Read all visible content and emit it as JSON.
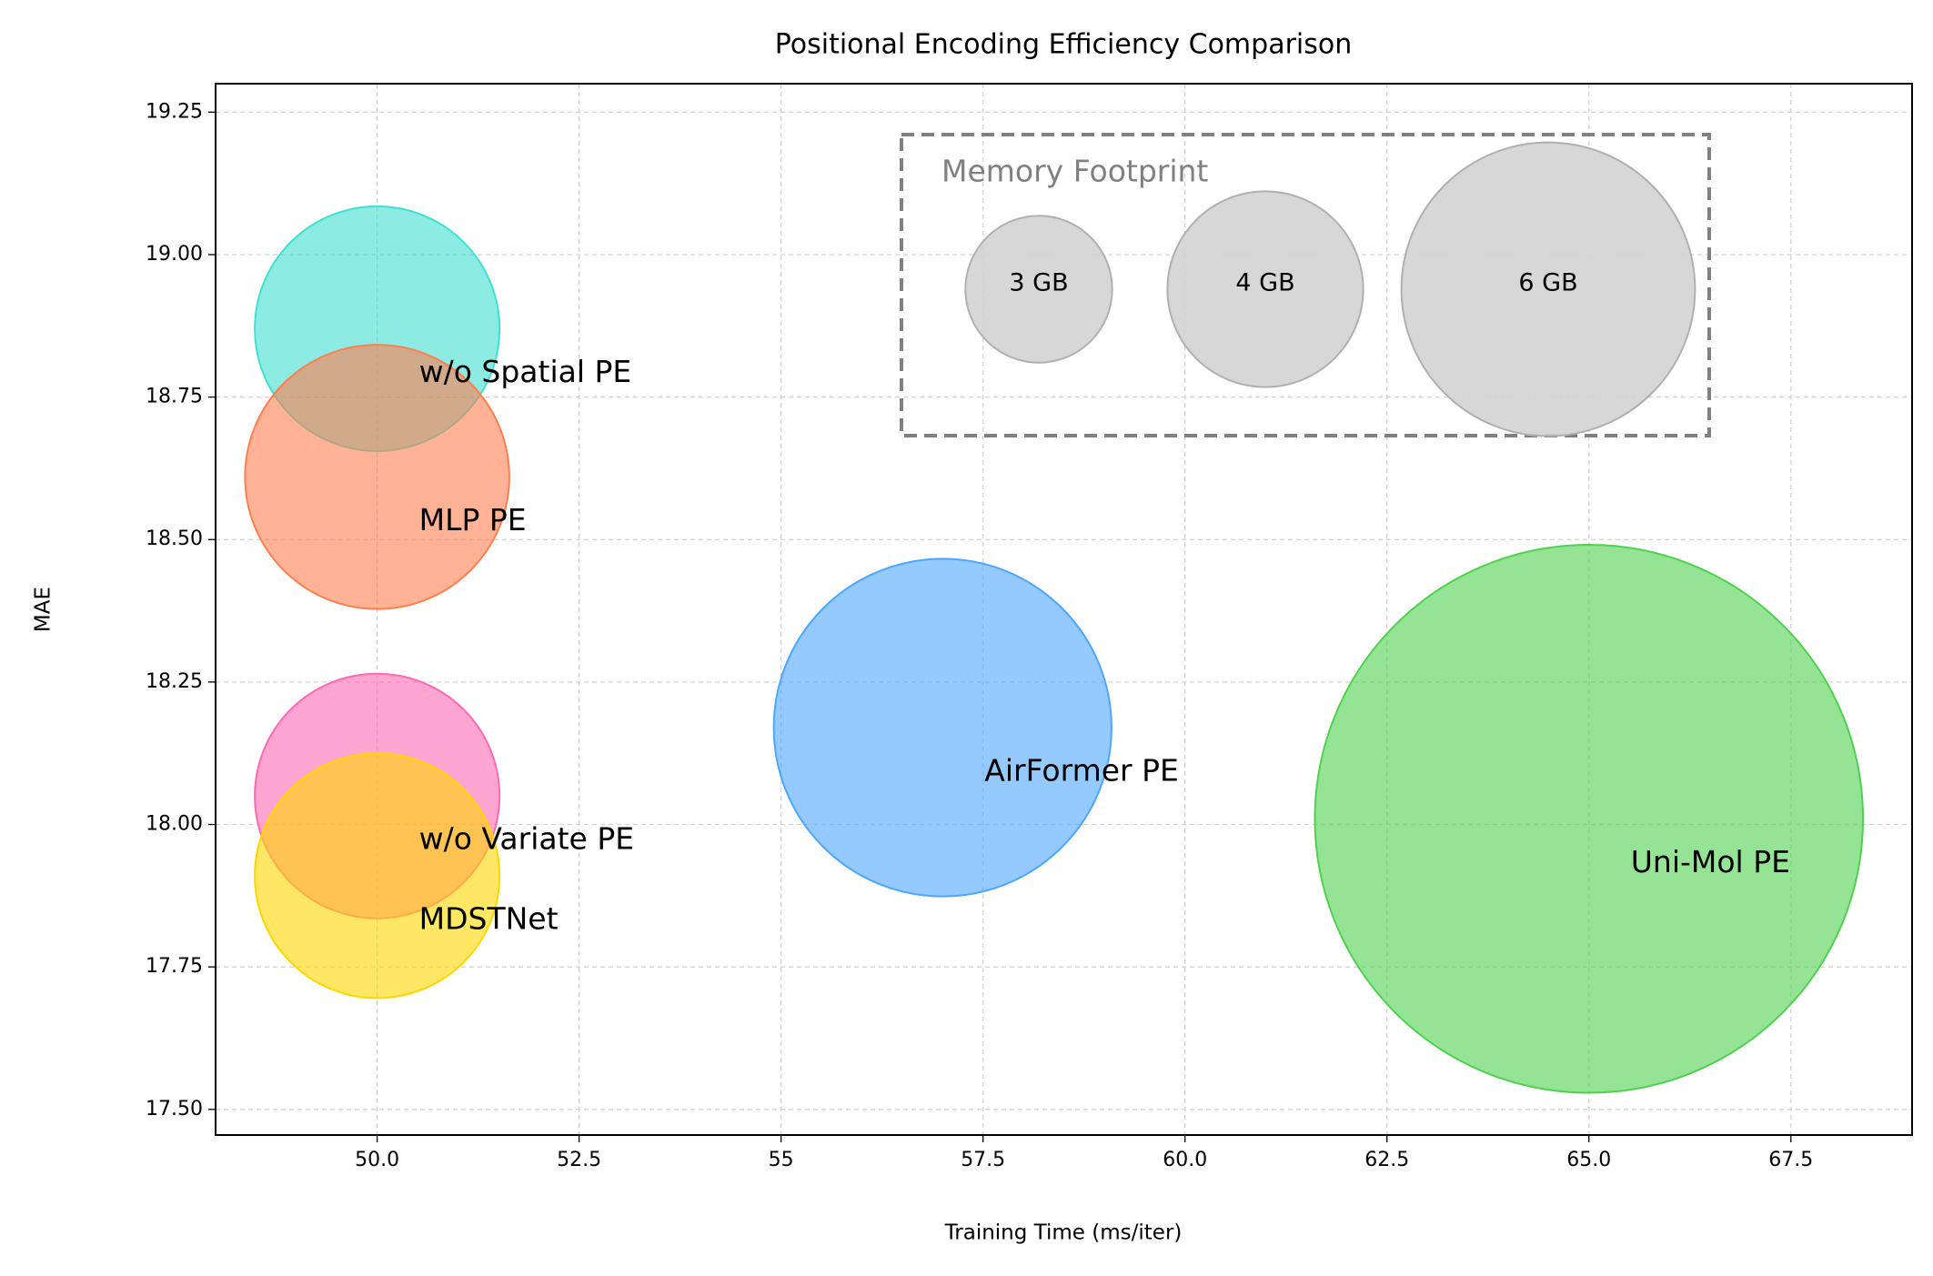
{
  "chart_data": {
    "type": "bubble",
    "title": "Positional Encoding Efficiency Comparison",
    "xlabel": "Training Time (ms/iter)",
    "ylabel": "MAE",
    "xlim": [
      48.0,
      69.0
    ],
    "ylim": [
      17.455,
      19.3
    ],
    "xticks": [
      {
        "value": 50,
        "label": "50.0"
      },
      52.5,
      55,
      {
        "value": 55,
        "label": "55.0"
      },
      57.5,
      {
        "value": 60,
        "label": "60.0"
      },
      62.5,
      {
        "value": 65,
        "label": "65.0"
      },
      67.5
    ],
    "yticks": [
      {
        "value": 17.5,
        "label": "17.50"
      },
      17.75,
      {
        "value": 18,
        "label": "18.00"
      },
      18.25,
      {
        "value": 18.5,
        "label": "18.50"
      },
      18.75,
      {
        "value": 19,
        "label": "19.00"
      },
      19.25
    ],
    "grid": true,
    "series": [
      {
        "name": "w/o Spatial PE",
        "color": "#40e0d0",
        "x": 50,
        "y": 18.87,
        "size": 5
      },
      {
        "name": "MLP PE",
        "color": "#ff7f50",
        "x": 50,
        "y": 18.61,
        "size": 5.4
      },
      {
        "name": "w/o Variate PE",
        "color": "#ff69b4",
        "x": 50,
        "y": 18.05,
        "size": 5
      },
      {
        "name": "MDSTNet",
        "color": "#ffd700",
        "x": 50,
        "y": 17.91,
        "size": 5
      },
      {
        "name": "AirFormer PE",
        "color": "#4da6ff",
        "x": 57,
        "y": 18.17,
        "size": 6.9
      },
      {
        "name": "Uni-Mol PE",
        "color": "#4fd14f",
        "x": 65,
        "y": 18.01,
        "size": 11.2
      }
    ],
    "size_legend": {
      "title": "Memory Footprint",
      "items": [
        {
          "value": 3,
          "label": "3 GB"
        },
        {
          "value": 4,
          "label": "4 GB"
        },
        {
          "value": 6,
          "label": "6 GB"
        }
      ]
    }
  }
}
